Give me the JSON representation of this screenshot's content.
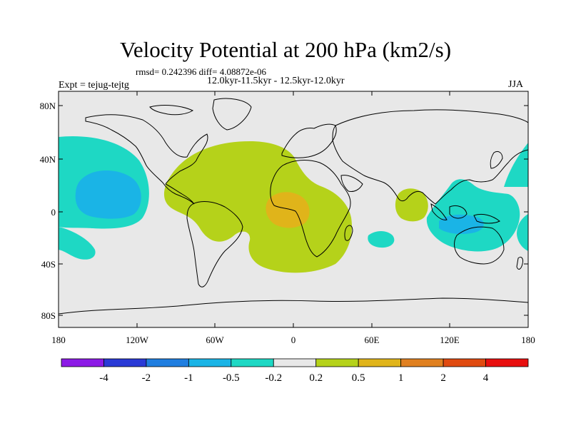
{
  "title": "Velocity Potential at 200 hPa (km2/s)",
  "stats": "rmsd= 0.242396 diff= 4.08872e-06",
  "experiment": "Expt = tejug-tejtg",
  "subtitle": "12.0kyr-11.5kyr - 12.5kyr-12.0kyr",
  "season": "JJA",
  "lat_labels": [
    "80N",
    "40N",
    "0",
    "40S",
    "80S"
  ],
  "lon_labels": [
    "180",
    "120W",
    "60W",
    "0",
    "60E",
    "120E",
    "180"
  ],
  "colorbar": {
    "labels": [
      "-4",
      "-2",
      "-1",
      "-0.5",
      "-0.2",
      "0.2",
      "0.5",
      "1",
      "2",
      "4"
    ],
    "colors": [
      "#8c1ae6",
      "#2a3ad6",
      "#1f7ee0",
      "#1ab4e6",
      "#1ed8c4",
      "#e8e8e8",
      "#b5d21a",
      "#e0b41a",
      "#e08020",
      "#e04a10",
      "#e80f0f"
    ]
  },
  "map_colors": {
    "background": "#e8e8e8",
    "neg_weak": "#1ed8c4",
    "neg_mid": "#1ab4e6",
    "pos_weak": "#b5d21a",
    "pos_mid": "#e0b41a"
  }
}
